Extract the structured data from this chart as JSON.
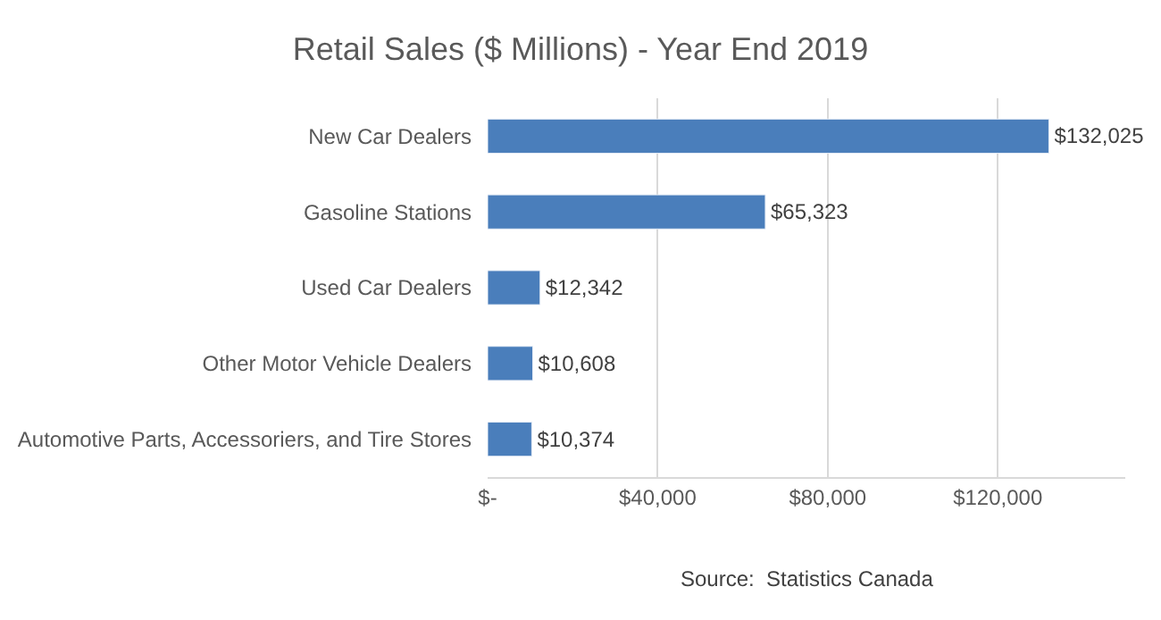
{
  "chart_data": {
    "type": "bar",
    "orientation": "horizontal",
    "title": "Retail Sales ($ Millions) - Year End 2019",
    "categories": [
      "New Car Dealers",
      "Gasoline Stations",
      "Used Car Dealers",
      "Other Motor Vehicle Dealers",
      "Automotive Parts, Accessoriers, and Tire Stores"
    ],
    "values": [
      132025,
      65323,
      12342,
      10608,
      10374
    ],
    "value_labels": [
      "$132,025",
      "$65,323",
      "$12,342",
      "$10,608",
      "$10,374"
    ],
    "color": "#4a7ebb",
    "xlim": [
      0,
      150000
    ],
    "xticks": [
      {
        "value": 0,
        "label": "$-"
      },
      {
        "value": 40000,
        "label": "$40,000"
      },
      {
        "value": 80000,
        "label": "$80,000"
      },
      {
        "value": 120000,
        "label": "$120,000"
      }
    ],
    "grid": "x",
    "legend": false,
    "annotations": [
      "Source:  Statistics Canada"
    ]
  }
}
